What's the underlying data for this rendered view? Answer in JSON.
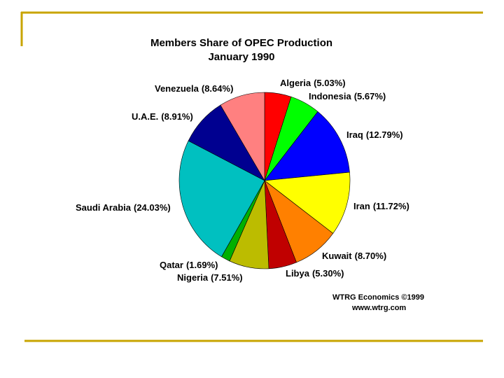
{
  "chart_data": {
    "type": "pie",
    "title": "Members Share of OPEC Production",
    "subtitle": "January 1990",
    "categories": [
      "Algeria",
      "Indonesia",
      "Iraq",
      "Iran",
      "Kuwait",
      "Libya",
      "Nigeria",
      "Qatar",
      "Saudi Arabia",
      "U.A.E.",
      "Venezuela"
    ],
    "values": [
      5.03,
      5.67,
      12.79,
      11.72,
      8.7,
      5.3,
      7.51,
      1.69,
      24.03,
      8.91,
      8.64
    ],
    "value_labels": [
      "(5.03%)",
      "(5.67%)",
      "(12.79%)",
      "(11.72%)",
      "(8.70%)",
      "(5.30%)",
      "(7.51%)",
      "(1.69%)",
      "(24.03%)",
      "(8.91%)",
      "(8.64%)"
    ],
    "colors": [
      "#ff0000",
      "#00ff00",
      "#0000ff",
      "#ffff00",
      "#ff8000",
      "#c00000",
      "#bcbc00",
      "#00b000",
      "#00c0c0",
      "#000090",
      "#ff8080"
    ],
    "source": [
      "WTRG Economics ©1999",
      "www.wtrg.com"
    ]
  }
}
